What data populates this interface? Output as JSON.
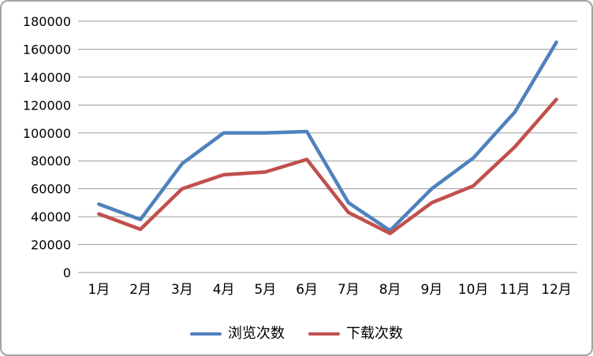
{
  "chart_data": {
    "type": "line",
    "title": "",
    "xlabel": "",
    "ylabel": "",
    "categories": [
      "1月",
      "2月",
      "3月",
      "4月",
      "5月",
      "6月",
      "7月",
      "8月",
      "9月",
      "10月",
      "11月",
      "12月"
    ],
    "series": [
      {
        "name": "浏览次数",
        "color": "#4F81BD",
        "values": [
          49000,
          38000,
          78000,
          100000,
          100000,
          101000,
          50000,
          30000,
          60000,
          82000,
          115000,
          165000
        ]
      },
      {
        "name": "下载次数",
        "color": "#C0504D",
        "values": [
          42000,
          31000,
          60000,
          70000,
          72000,
          81000,
          43000,
          28000,
          50000,
          62000,
          90000,
          124000
        ]
      }
    ],
    "ylim": [
      0,
      180000
    ],
    "ytick_step": 20000,
    "y_tick_labels": [
      "0",
      "20000",
      "40000",
      "60000",
      "80000",
      "100000",
      "120000",
      "140000",
      "160000",
      "180000"
    ],
    "grid": true,
    "gridline_color": "#9c9c9c",
    "axis_line_color": "#9c9c9c",
    "legend_position": "bottom",
    "frame_border_color": "#a3a3a3",
    "background_color": "#ffffff"
  }
}
